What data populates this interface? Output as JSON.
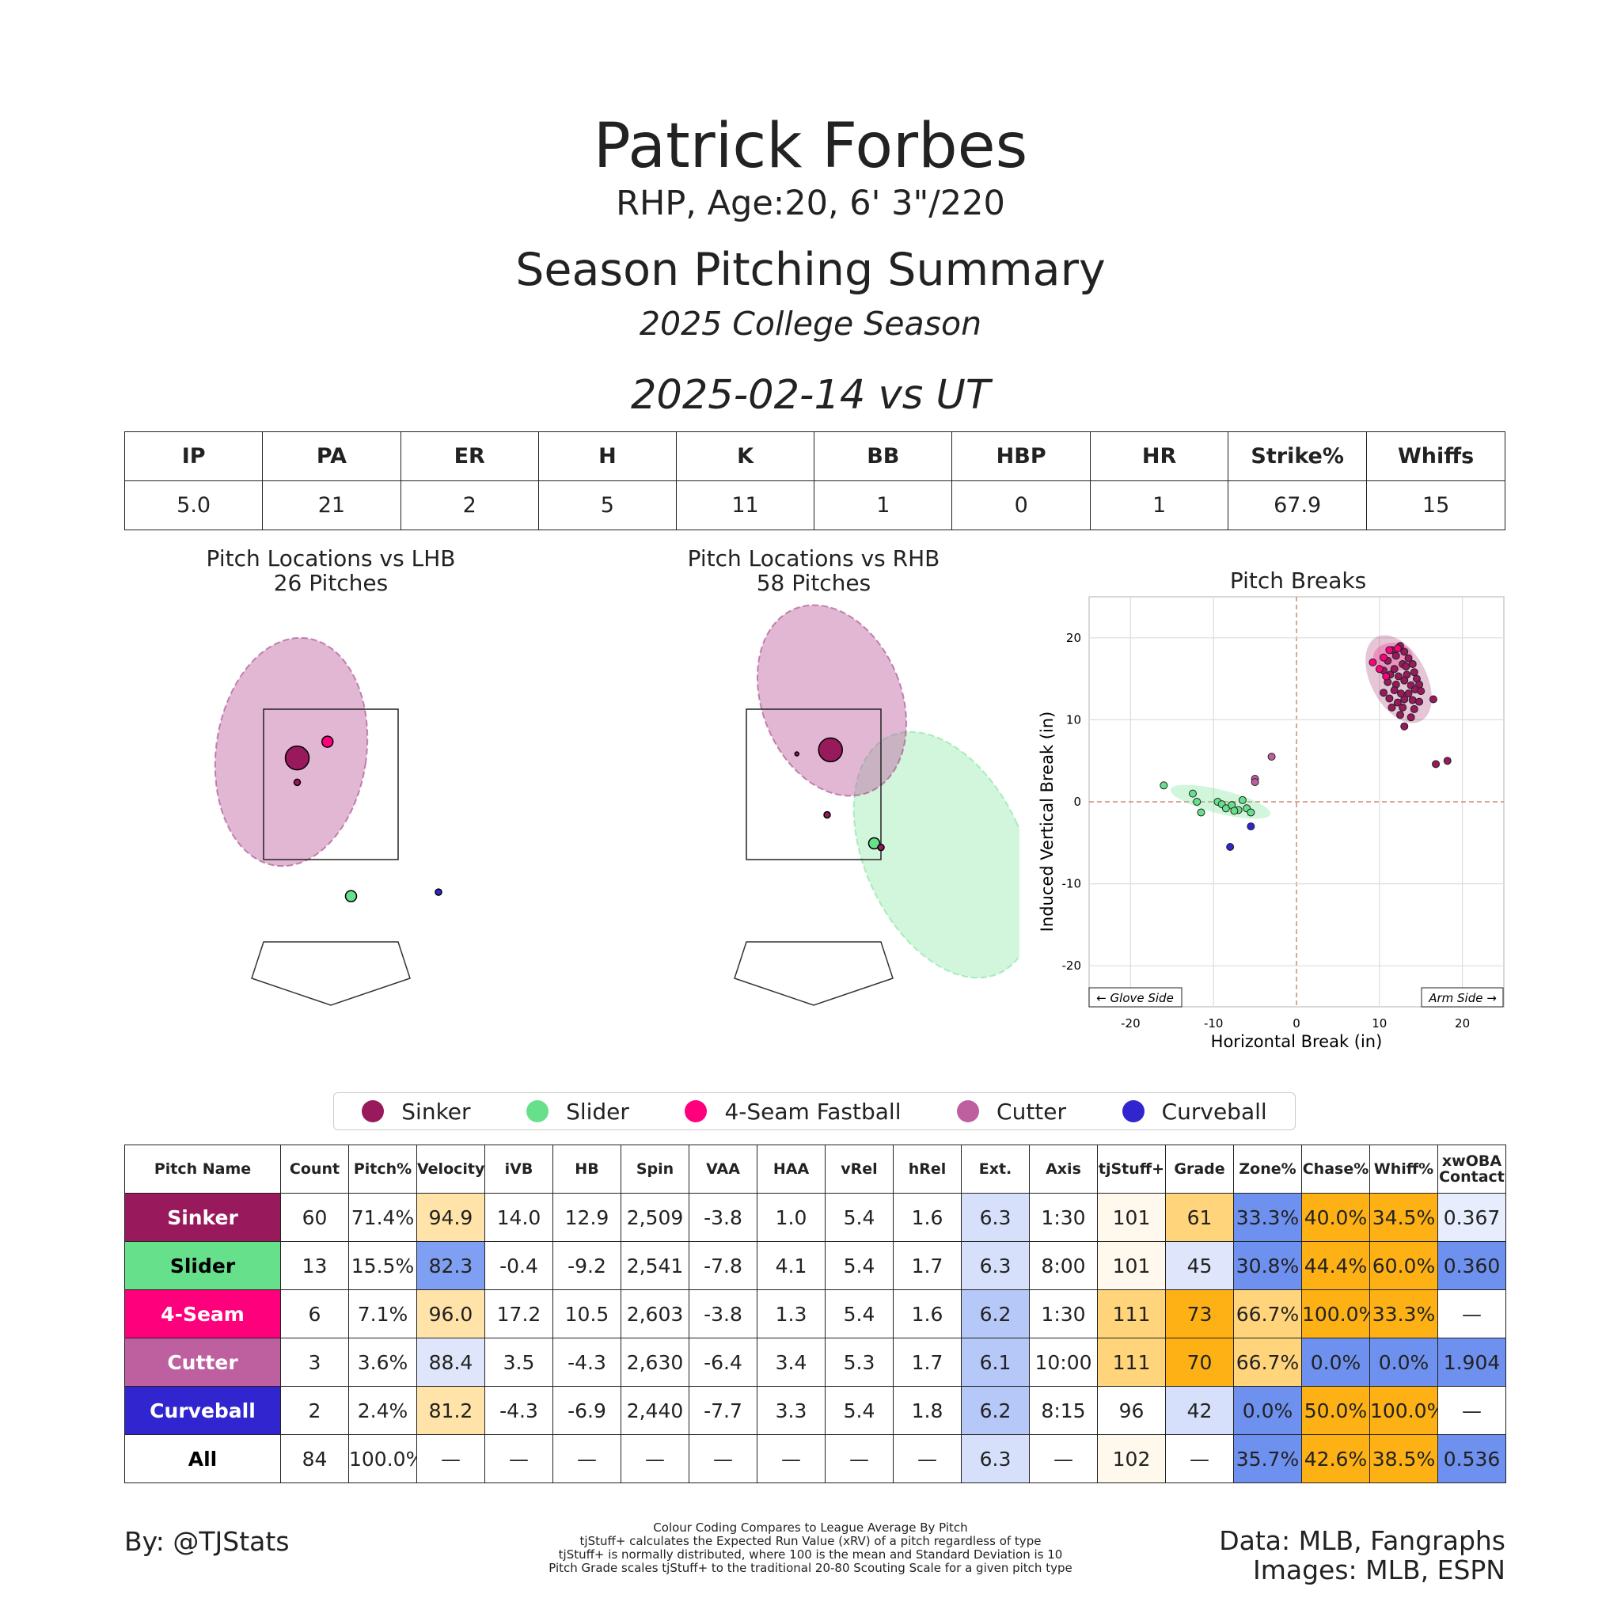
{
  "header": {
    "name": "Patrick Forbes",
    "bio": "RHP, Age:20, 6' 3\"/220",
    "title": "Season Pitching Summary",
    "season": "2025 College Season",
    "game": "2025-02-14 vs UT"
  },
  "box_score": {
    "headers": [
      "IP",
      "PA",
      "ER",
      "H",
      "K",
      "BB",
      "HBP",
      "HR",
      "Strike%",
      "Whiffs"
    ],
    "values": [
      "5.0",
      "21",
      "2",
      "5",
      "11",
      "1",
      "0",
      "1",
      "67.9",
      "15"
    ]
  },
  "colors": {
    "Sinker": "#98195c",
    "Slider": "#67e08c",
    "4-Seam Fastball": "#ff007d",
    "Cutter": "#be5fa0",
    "Curveball": "#3025ce"
  },
  "legend": [
    "Sinker",
    "Slider",
    "4-Seam Fastball",
    "Cutter",
    "Curveball"
  ],
  "chart_data": [
    {
      "type": "scatter",
      "title": "Pitch Locations vs LHB",
      "subtitle": "26 Pitches",
      "points": [
        {
          "pitch": "Sinker",
          "x": -0.5,
          "y": 2.9,
          "size": "large"
        },
        {
          "pitch": "4-Seam Fastball",
          "x": -0.05,
          "y": 3.1,
          "size": "small"
        },
        {
          "pitch": "Sinker",
          "x": -0.5,
          "y": 2.6,
          "size": "tiny"
        },
        {
          "pitch": "Slider",
          "x": 0.3,
          "y": 1.2,
          "size": "small"
        },
        {
          "pitch": "Curveball",
          "x": 1.6,
          "y": 1.25,
          "size": "tiny"
        }
      ]
    },
    {
      "type": "scatter",
      "title": "Pitch Locations vs RHB",
      "subtitle": "58 Pitches",
      "points": [
        {
          "pitch": "Sinker",
          "x": 0.25,
          "y": 3.0,
          "size": "large"
        },
        {
          "pitch": "Sinker",
          "x": 0.2,
          "y": 2.2,
          "size": "tiny"
        },
        {
          "pitch": "Sinker",
          "x": -0.25,
          "y": 2.95,
          "size": "dot"
        },
        {
          "pitch": "Slider",
          "x": 0.9,
          "y": 1.85,
          "size": "small"
        },
        {
          "pitch": "Sinker",
          "x": 1.0,
          "y": 1.8,
          "size": "tiny"
        }
      ]
    },
    {
      "type": "scatter",
      "title": "Pitch Breaks",
      "xlabel": "Horizontal Break (in)",
      "ylabel": "Induced Vertical Break (in)",
      "xlim": [
        -25,
        25
      ],
      "ylim": [
        -25,
        25
      ],
      "xticks": [
        -20,
        -10,
        0,
        10,
        20
      ],
      "yticks": [
        -20,
        -10,
        0,
        10,
        20
      ],
      "grid": true,
      "annotations": [
        "← Glove Side",
        "Arm Side →"
      ],
      "series": [
        {
          "name": "Sinker",
          "points": [
            [
              11.5,
              18.5
            ],
            [
              12.5,
              19
            ],
            [
              13,
              18.3
            ],
            [
              11,
              17.2
            ],
            [
              12,
              17.8
            ],
            [
              13.5,
              17.5
            ],
            [
              12.8,
              16.8
            ],
            [
              11.8,
              16.2
            ],
            [
              13.2,
              16.5
            ],
            [
              14,
              16.8
            ],
            [
              10.5,
              16
            ],
            [
              11.3,
              15.5
            ],
            [
              12.3,
              15.3
            ],
            [
              13.3,
              15.5
            ],
            [
              14.2,
              15.8
            ],
            [
              14.5,
              15
            ],
            [
              11,
              14.6
            ],
            [
              12,
              14.3
            ],
            [
              13,
              14.8
            ],
            [
              13.8,
              14.2
            ],
            [
              14.8,
              14.3
            ],
            [
              10.5,
              13.3
            ],
            [
              11.8,
              13.6
            ],
            [
              12.6,
              13.2
            ],
            [
              13.5,
              13.2
            ],
            [
              14.3,
              13.7
            ],
            [
              15,
              13.5
            ],
            [
              11.2,
              12.6
            ],
            [
              12.2,
              12.1
            ],
            [
              13,
              12.5
            ],
            [
              14,
              12.4
            ],
            [
              14.8,
              12.2
            ],
            [
              16.5,
              12.5
            ],
            [
              11.5,
              11.5
            ],
            [
              12.8,
              11.5
            ],
            [
              14.2,
              11.3
            ],
            [
              13.8,
              10.3
            ],
            [
              12.5,
              10.6
            ],
            [
              13,
              9.2
            ],
            [
              16.8,
              4.6
            ],
            [
              18.2,
              5
            ]
          ]
        },
        {
          "name": "4-Seam Fastball",
          "points": [
            [
              9.2,
              17
            ],
            [
              10.5,
              17.6
            ],
            [
              11.2,
              18.5
            ],
            [
              10,
              16.2
            ],
            [
              12.2,
              18.7
            ],
            [
              10.8,
              15.3
            ]
          ]
        },
        {
          "name": "Cutter",
          "points": [
            [
              -3,
              5.5
            ],
            [
              -5,
              2.8
            ],
            [
              -5,
              2.4
            ]
          ]
        },
        {
          "name": "Slider",
          "points": [
            [
              -16,
              2
            ],
            [
              -12.5,
              1
            ],
            [
              -12,
              0
            ],
            [
              -11.5,
              -1.3
            ],
            [
              -9.5,
              0
            ],
            [
              -9,
              -0.3
            ],
            [
              -8.5,
              -0.8
            ],
            [
              -7.8,
              -0.4
            ],
            [
              -7,
              -1
            ],
            [
              -6.5,
              0.2
            ],
            [
              -6,
              -0.8
            ],
            [
              -5.5,
              -1.3
            ],
            [
              -7.5,
              -1.1
            ]
          ]
        },
        {
          "name": "Curveball",
          "points": [
            [
              -5.5,
              -3
            ],
            [
              -8,
              -5.5
            ]
          ]
        }
      ]
    }
  ],
  "pitch_table": {
    "headers": [
      "Pitch Name",
      "Count",
      "Pitch%",
      "Velocity",
      "iVB",
      "HB",
      "Spin",
      "VAA",
      "HAA",
      "vRel",
      "hRel",
      "Ext.",
      "Axis",
      "tjStuff+",
      "Grade",
      "Zone%",
      "Chase%",
      "Whiff%",
      "xwOBA Contact"
    ],
    "rows": [
      {
        "name": "Sinker",
        "color": "#98195c",
        "text_color": "#ffffff",
        "cells": [
          "60",
          "71.4%",
          "94.9",
          "14.0",
          "12.9",
          "2,509",
          "-3.8",
          "1.0",
          "5.4",
          "1.6",
          "6.3",
          "1:30",
          "101",
          "61",
          "33.3%",
          "40.0%",
          "34.5%",
          "0.367"
        ],
        "bg": [
          "#fff",
          "#fff",
          "#ffe3a8",
          "#fff",
          "#fff",
          "#fff",
          "#fff",
          "#fff",
          "#fff",
          "#fff",
          "#d6e0fb",
          "#fff",
          "#fff8ec",
          "#ffd47a",
          "#6e91ef",
          "#fdb115",
          "#fdb115",
          "#e7edfc"
        ]
      },
      {
        "name": "Slider",
        "color": "#67e08c",
        "text_color": "#000000",
        "cells": [
          "13",
          "15.5%",
          "82.3",
          "-0.4",
          "-9.2",
          "2,541",
          "-7.8",
          "4.1",
          "5.4",
          "1.7",
          "6.3",
          "8:00",
          "101",
          "45",
          "30.8%",
          "44.4%",
          "60.0%",
          "0.360"
        ],
        "bg": [
          "#fff",
          "#fff",
          "#7f9ff2",
          "#fff",
          "#fff",
          "#fff",
          "#fff",
          "#fff",
          "#fff",
          "#fff",
          "#d6e0fb",
          "#fff",
          "#fff8ec",
          "#dfe6fb",
          "#6e91ef",
          "#fdb115",
          "#fdb115",
          "#6e91ef"
        ]
      },
      {
        "name": "4-Seam",
        "color": "#ff007d",
        "text_color": "#ffffff",
        "cells": [
          "6",
          "7.1%",
          "96.0",
          "17.2",
          "10.5",
          "2,603",
          "-3.8",
          "1.3",
          "5.4",
          "1.6",
          "6.2",
          "1:30",
          "111",
          "73",
          "66.7%",
          "100.0%",
          "33.3%",
          "—"
        ],
        "bg": [
          "#fff",
          "#fff",
          "#ffe3a8",
          "#fff",
          "#fff",
          "#fff",
          "#fff",
          "#fff",
          "#fff",
          "#fff",
          "#b5c8f7",
          "#fff",
          "#ffd47a",
          "#fdb115",
          "#ffd47a",
          "#fdb115",
          "#fdb115",
          "#fff"
        ]
      },
      {
        "name": "Cutter",
        "color": "#be5fa0",
        "text_color": "#ffffff",
        "cells": [
          "3",
          "3.6%",
          "88.4",
          "3.5",
          "-4.3",
          "2,630",
          "-6.4",
          "3.4",
          "5.3",
          "1.7",
          "6.1",
          "10:00",
          "111",
          "70",
          "66.7%",
          "0.0%",
          "0.0%",
          "1.904"
        ],
        "bg": [
          "#fff",
          "#fff",
          "#dfe6fb",
          "#fff",
          "#fff",
          "#fff",
          "#fff",
          "#fff",
          "#fff",
          "#fff",
          "#b5c8f7",
          "#fff",
          "#ffd47a",
          "#fdb115",
          "#ffd47a",
          "#6e91ef",
          "#6e91ef",
          "#6e91ef"
        ]
      },
      {
        "name": "Curveball",
        "color": "#3025ce",
        "text_color": "#ffffff",
        "cells": [
          "2",
          "2.4%",
          "81.2",
          "-4.3",
          "-6.9",
          "2,440",
          "-7.7",
          "3.3",
          "5.4",
          "1.8",
          "6.2",
          "8:15",
          "96",
          "42",
          "0.0%",
          "50.0%",
          "100.0%",
          "—"
        ],
        "bg": [
          "#fff",
          "#fff",
          "#ffe3a8",
          "#fff",
          "#fff",
          "#fff",
          "#fff",
          "#fff",
          "#fff",
          "#fff",
          "#b5c8f7",
          "#fff",
          "#fff",
          "#d6e0fb",
          "#6e91ef",
          "#fdb115",
          "#fdb115",
          "#fff"
        ]
      },
      {
        "name": "All",
        "color": "#ffffff",
        "text_color": "#000000",
        "cells": [
          "84",
          "100.0%",
          "—",
          "—",
          "—",
          "—",
          "—",
          "—",
          "—",
          "—",
          "6.3",
          "—",
          "102",
          "—",
          "35.7%",
          "42.6%",
          "38.5%",
          "0.536"
        ],
        "bg": [
          "#fff",
          "#fff",
          "#fff",
          "#fff",
          "#fff",
          "#fff",
          "#fff",
          "#fff",
          "#fff",
          "#fff",
          "#d6e0fb",
          "#fff",
          "#fff8ec",
          "#fff",
          "#6e91ef",
          "#fdb115",
          "#fdb115",
          "#6e91ef"
        ]
      }
    ]
  },
  "footer": {
    "by": "By: @TJStats",
    "data_line": "Data: MLB, Fangraphs",
    "images_line": "Images: MLB, ESPN",
    "notes": [
      "Colour Coding Compares to League Average By Pitch",
      "tjStuff+ calculates the Expected Run Value (xRV) of a pitch regardless of type",
      "tjStuff+ is normally distributed, where 100 is the mean and Standard Deviation is 10",
      "Pitch Grade scales tjStuff+ to the traditional 20-80 Scouting Scale for a given pitch type"
    ]
  }
}
